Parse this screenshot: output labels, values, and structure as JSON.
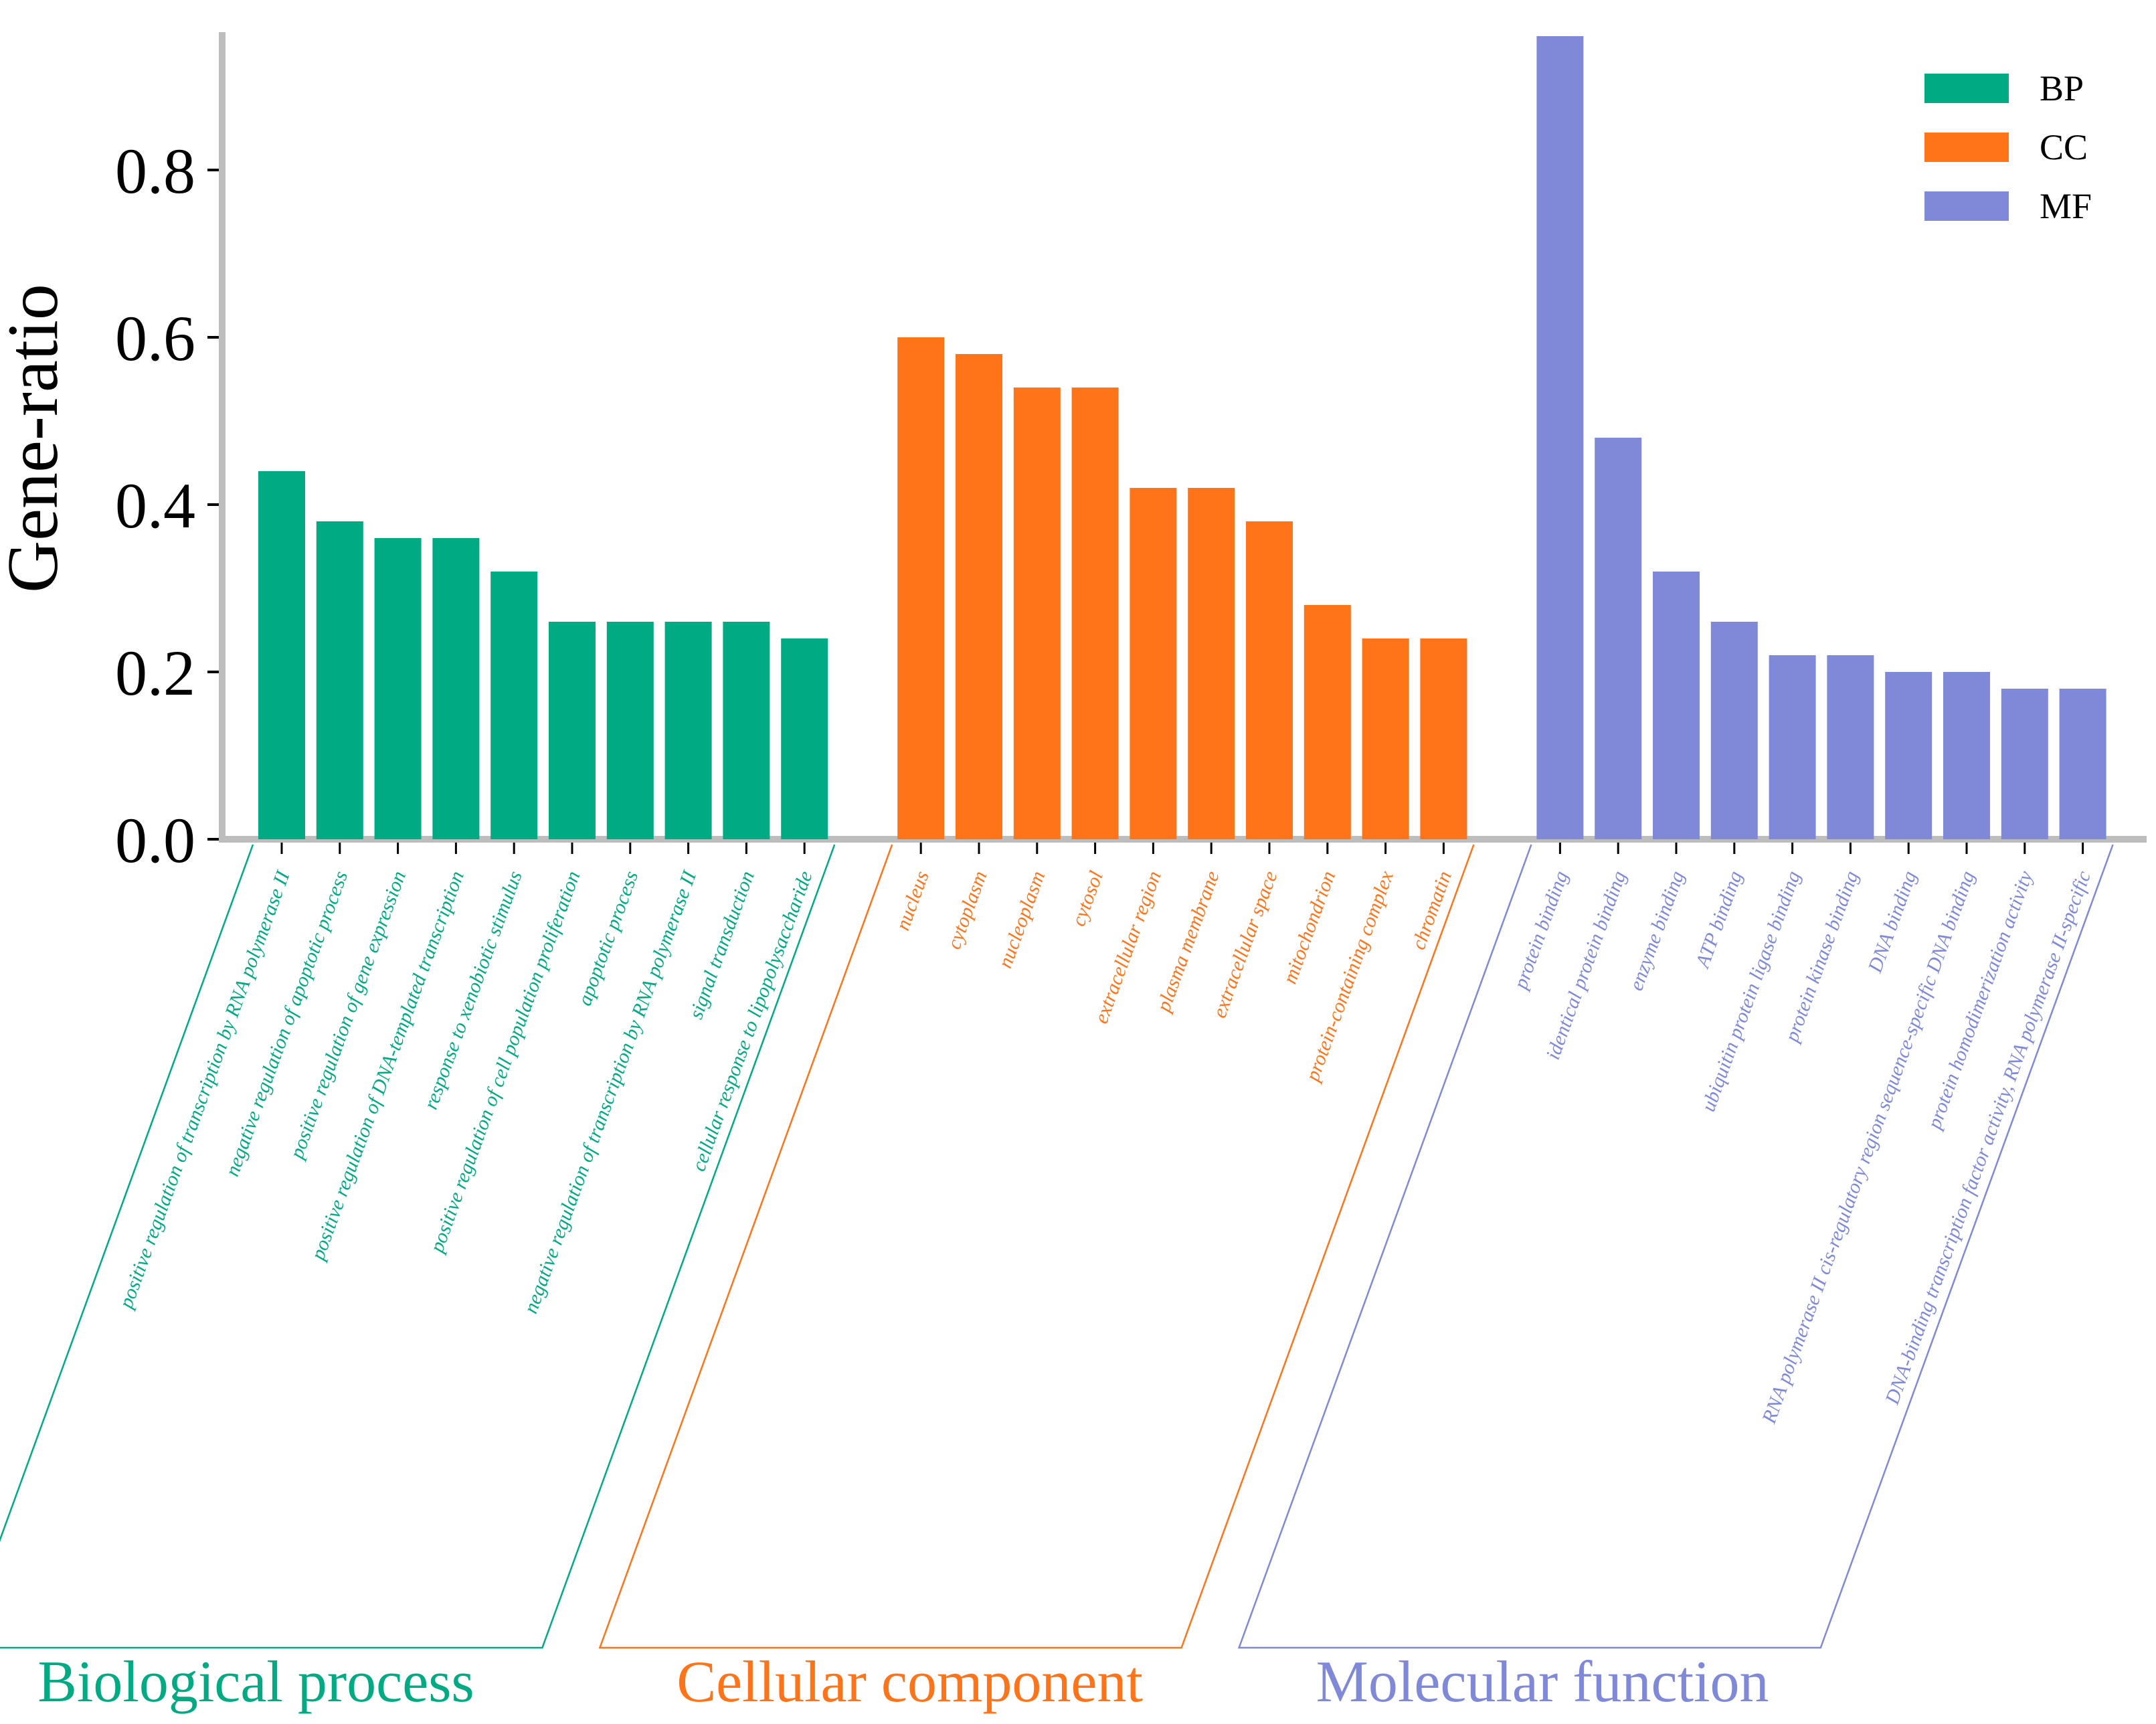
{
  "chart_data": {
    "type": "bar",
    "title": "",
    "xlabel": "",
    "ylabel": "Gene-ratio",
    "ylim": [
      0,
      0.96
    ],
    "yticks": [
      0.0,
      0.2,
      0.4,
      0.6,
      0.8
    ],
    "ytick_labels": [
      "0.0",
      "0.2",
      "0.4",
      "0.6",
      "0.8"
    ],
    "legend": {
      "position": "top-right",
      "entries": [
        {
          "label": "BP",
          "color": "#00ab84"
        },
        {
          "label": "CC",
          "color": "#ff7319"
        },
        {
          "label": "MF",
          "color": "#7f89d8"
        }
      ]
    },
    "groups": [
      {
        "key": "BP",
        "title": "Biological process",
        "color": "#00ab84",
        "categories": [
          "positive regulation of transcription by RNA polymerase II",
          "negative regulation of apoptotic process",
          "positive regulation of gene expression",
          "positive regulation of DNA-templated transcription",
          "response to xenobiotic stimulus",
          "positive regulation of cell population proliferation",
          "apoptotic process",
          "negative regulation of transcription by RNA polymerase II",
          "signal transduction",
          "cellular response to lipopolysaccharide"
        ],
        "values": [
          0.44,
          0.38,
          0.36,
          0.36,
          0.32,
          0.26,
          0.26,
          0.26,
          0.26,
          0.24
        ]
      },
      {
        "key": "CC",
        "title": "Cellular component",
        "color": "#ff7319",
        "categories": [
          "nucleus",
          "cytoplasm",
          "nucleoplasm",
          "cytosol",
          "extracellular region",
          "plasma membrane",
          "extracellular space",
          "mitochondrion",
          "protein-containing complex",
          "chromatin"
        ],
        "values": [
          0.6,
          0.58,
          0.54,
          0.54,
          0.42,
          0.42,
          0.38,
          0.28,
          0.24,
          0.24
        ]
      },
      {
        "key": "MF",
        "title": "Molecular function",
        "color": "#7f89d8",
        "categories": [
          "protein binding",
          "identical protein binding",
          "enzyme binding",
          "ATP binding",
          "ubiquitin protein ligase binding",
          "protein kinase binding",
          "DNA binding",
          "RNA polymerase II cis-regulatory region sequence-specific DNA binding",
          "protein homodimerization activity",
          "DNA-binding transcription factor activity, RNA polymerase II-specific"
        ],
        "values": [
          0.96,
          0.48,
          0.32,
          0.26,
          0.22,
          0.22,
          0.2,
          0.2,
          0.18,
          0.18
        ]
      }
    ]
  }
}
